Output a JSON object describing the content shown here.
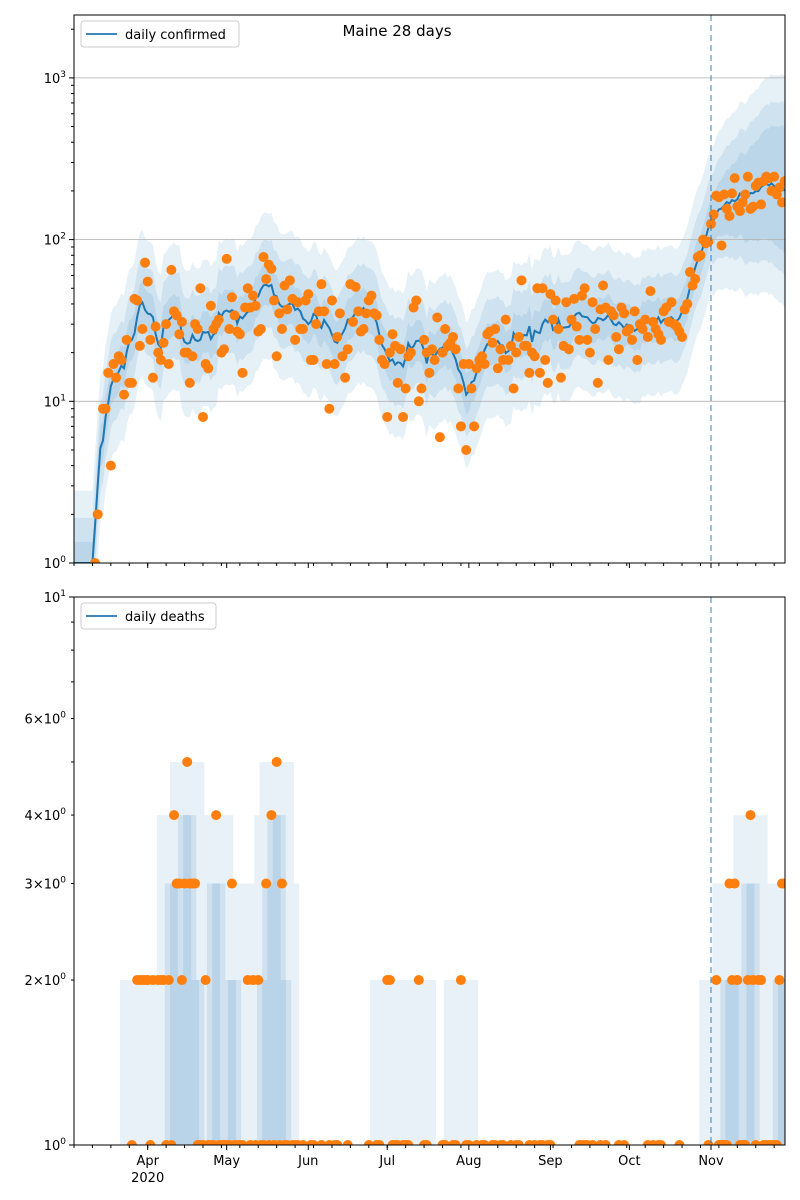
{
  "chart_data": [
    {
      "type": "scatter",
      "title": "Maine 28 days",
      "scale": "log",
      "ylim": [
        1,
        2450
      ],
      "y_ticks": [
        {
          "base": "10",
          "exp": "0",
          "value": 1
        },
        {
          "base": "10",
          "exp": "1",
          "value": 10
        },
        {
          "base": "10",
          "exp": "2",
          "value": 100
        },
        {
          "base": "10",
          "exp": "3",
          "value": 1000
        }
      ],
      "grid": "horizontal at major ticks",
      "legend": {
        "label": "daily confirmed",
        "placement": "top-left"
      },
      "start_date": "2020-03-04",
      "forecast_start": "Nov 1",
      "band_factors": [
        [
          0.75,
          1.35
        ],
        [
          0.55,
          1.9
        ],
        [
          0.35,
          2.8
        ]
      ],
      "colors": {
        "line": "#1f77b4",
        "points": "#ff7f0e",
        "band": "#1f77b4",
        "grid": "#b0b0b0"
      },
      "values": [
        0,
        0,
        0,
        0,
        0,
        0,
        0,
        0,
        1,
        2,
        0,
        9,
        9,
        15,
        4,
        17,
        14,
        19,
        18,
        11,
        24,
        13,
        13,
        43,
        42,
        22,
        28,
        72,
        55,
        24,
        14,
        29,
        20,
        18,
        23,
        30,
        17,
        65,
        36,
        34,
        26,
        31,
        20,
        20,
        13,
        19,
        30,
        28,
        50,
        8,
        17,
        16,
        39,
        28,
        30,
        32,
        20,
        21,
        76,
        28,
        44,
        34,
        27,
        26,
        15,
        38,
        50,
        38,
        45,
        39,
        27,
        28,
        78,
        57,
        70,
        66,
        42,
        19,
        35,
        28,
        52,
        37,
        56,
        43,
        24,
        41,
        28,
        28,
        42,
        46,
        18,
        18,
        30,
        36,
        53,
        36,
        17,
        9,
        42,
        17,
        25,
        35,
        19,
        14,
        21,
        53,
        31,
        51,
        36,
        27,
        28,
        35,
        42,
        45,
        35,
        34,
        24,
        18,
        17,
        8,
        20,
        26,
        22,
        13,
        21,
        8,
        12,
        19,
        20,
        38,
        42,
        10,
        12,
        24,
        20,
        15,
        21,
        18,
        33,
        6,
        20,
        28,
        22,
        23,
        25,
        21,
        12,
        7,
        17,
        5,
        17,
        12,
        7,
        16,
        18,
        19,
        17,
        26,
        27,
        23,
        28,
        16,
        21,
        18,
        32,
        18,
        22,
        12,
        20,
        25,
        56,
        22,
        22,
        15,
        20,
        19,
        50,
        15,
        50,
        18,
        13,
        46,
        32,
        42,
        28,
        14,
        22,
        41,
        21,
        32,
        43,
        29,
        24,
        45,
        50,
        24,
        20,
        41,
        28,
        13,
        37,
        52,
        38,
        18,
        36,
        34,
        25,
        21,
        38,
        35,
        27,
        28,
        24,
        36,
        18,
        30,
        28,
        32,
        25,
        48,
        31,
        28,
        26,
        24,
        36,
        38,
        31,
        41,
        30,
        29,
        27,
        25,
        37,
        40,
        63,
        52,
        57,
        78,
        80,
        100,
        95,
        97,
        125,
        143,
        187,
        183,
        92,
        190,
        155,
        140,
        193,
        240,
        160,
        150,
        170,
        190,
        245,
        155,
        160,
        215,
        225,
        165,
        230,
        245,
        240,
        200,
        245,
        190,
        210,
        170,
        230
      ]
    },
    {
      "type": "scatter",
      "scale": "log",
      "ylim": [
        1,
        10
      ],
      "y_ticks": [
        {
          "base": "10",
          "exp": "0",
          "value": 1
        },
        {
          "base": "10",
          "exp": "1",
          "value": 10
        }
      ],
      "y_minor_labels": [
        {
          "coef": "2",
          "base": "10",
          "exp": "0",
          "value": 2
        },
        {
          "coef": "3",
          "base": "10",
          "exp": "0",
          "value": 3
        },
        {
          "coef": "4",
          "base": "10",
          "exp": "0",
          "value": 4
        },
        {
          "coef": "6",
          "base": "10",
          "exp": "0",
          "value": 6
        }
      ],
      "legend": {
        "label": "daily deaths",
        "placement": "top-left"
      },
      "start_date": "2020-03-04",
      "forecast_start": "Nov 1",
      "x_ticks": [
        {
          "label": "Apr",
          "sub": "2020",
          "day": 28
        },
        {
          "label": "May",
          "day": 58
        },
        {
          "label": "Jun",
          "day": 89
        },
        {
          "label": "Jul",
          "day": 119
        },
        {
          "label": "Aug",
          "day": 150
        },
        {
          "label": "Sep",
          "day": 181
        },
        {
          "label": "Oct",
          "day": 211
        },
        {
          "label": "Nov",
          "day": 242
        }
      ],
      "colors": {
        "line": "#1f77b4",
        "points": "#ff7f0e",
        "band": "#1f77b4"
      },
      "values": [
        0,
        0,
        0,
        0,
        0,
        0,
        0,
        0,
        0,
        0,
        0,
        0,
        0,
        0,
        0,
        0,
        0,
        0,
        0,
        0,
        0,
        0,
        1,
        0,
        2,
        2,
        2,
        2,
        2,
        1,
        2,
        0,
        2,
        2,
        2,
        1,
        2,
        1,
        4,
        3,
        3,
        2,
        3,
        5,
        3,
        3,
        3,
        1,
        1,
        1,
        2,
        1,
        1,
        1,
        4,
        1,
        1,
        1,
        1,
        1,
        3,
        1,
        1,
        1,
        1,
        0,
        2,
        1,
        2,
        1,
        2,
        1,
        1,
        3,
        1,
        4,
        1,
        5,
        1,
        3,
        1,
        1,
        0,
        1,
        1,
        1,
        0,
        1,
        0,
        0,
        1,
        1,
        0,
        0,
        1,
        0,
        0,
        1,
        0,
        1,
        1,
        0,
        0,
        0,
        1,
        0,
        0,
        0,
        0,
        0,
        0,
        0,
        1,
        0,
        0,
        1,
        1,
        0,
        0,
        2,
        2,
        1,
        1,
        1,
        0,
        1,
        1,
        1,
        0,
        0,
        0,
        2,
        0,
        1,
        1,
        0,
        0,
        0,
        0,
        0,
        1,
        1,
        0,
        0,
        1,
        1,
        0,
        2,
        0,
        1,
        1,
        0,
        0,
        1,
        0,
        1,
        1,
        0,
        0,
        1,
        1,
        0,
        1,
        1,
        0,
        0,
        1,
        0,
        1,
        1,
        0,
        0,
        0,
        1,
        0,
        1,
        0,
        1,
        1,
        0,
        1,
        1,
        0,
        0,
        0,
        0,
        0,
        0,
        0,
        0,
        0,
        0,
        1,
        1,
        1,
        1,
        0,
        1,
        0,
        0,
        1,
        0,
        1,
        0,
        0,
        0,
        0,
        1,
        0,
        1,
        0,
        0,
        0,
        0,
        0,
        0,
        0,
        0,
        1,
        0,
        1,
        0,
        1,
        1,
        0,
        0,
        0,
        0,
        0,
        0,
        1,
        0,
        0,
        0,
        0,
        0,
        0,
        0,
        0,
        0,
        0,
        1,
        0,
        0,
        2,
        1,
        1,
        1,
        1,
        3,
        2,
        3,
        2,
        1,
        1,
        1,
        2,
        4,
        2,
        1,
        2,
        2,
        1,
        1,
        1,
        1,
        1,
        1,
        2,
        3,
        3
      ]
    }
  ]
}
